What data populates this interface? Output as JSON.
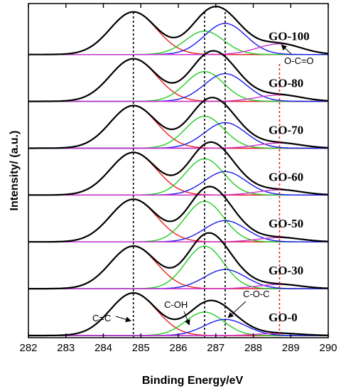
{
  "chart_data": {
    "type": "line",
    "xlabel": "Binding Energy/eV",
    "ylabel": "Intensity/ (a.u.)",
    "xlim": [
      282,
      290
    ],
    "x_ticks": [
      "282",
      "283",
      "284",
      "285",
      "286",
      "287",
      "288",
      "289",
      "290"
    ],
    "y_ticks_shown": false,
    "grid": false,
    "reference_lines": [
      {
        "x": 284.8,
        "color": "#000000",
        "style": "dotted"
      },
      {
        "x": 286.7,
        "color": "#000000",
        "style": "dotted"
      },
      {
        "x": 287.25,
        "color": "#000000",
        "style": "dotted"
      },
      {
        "x": 288.7,
        "color": "#e82020",
        "style": "dotted"
      }
    ],
    "component_colors": {
      "envelope": "#000000",
      "c_eq_c": "#e82020",
      "c_oh": "#22cc22",
      "c_o_c": "#1a1aee",
      "o_c_eq_o": "#cc33cc"
    },
    "annotations": {
      "c_eq_c": "C=C",
      "c_oh": "C-OH",
      "c_o_c": "C-O-C",
      "o_c_eq_o": "O-C=O"
    },
    "stack_gap": 1.1,
    "series": [
      {
        "name": "GO-100",
        "peaks": [
          {
            "component": "c_eq_c",
            "center": 284.8,
            "height": 1.0,
            "fwhm": 1.45
          },
          {
            "component": "c_oh",
            "center": 286.7,
            "height": 0.55,
            "fwhm": 1.2
          },
          {
            "component": "c_o_c",
            "center": 287.25,
            "height": 0.73,
            "fwhm": 1.3
          },
          {
            "component": "o_c_eq_o",
            "center": 288.7,
            "height": 0.25,
            "fwhm": 1.4
          }
        ]
      },
      {
        "name": "GO-80",
        "peaks": [
          {
            "component": "c_eq_c",
            "center": 284.8,
            "height": 1.0,
            "fwhm": 1.45
          },
          {
            "component": "c_oh",
            "center": 286.7,
            "height": 0.7,
            "fwhm": 1.2
          },
          {
            "component": "c_o_c",
            "center": 287.25,
            "height": 0.65,
            "fwhm": 1.3
          },
          {
            "component": "o_c_eq_o",
            "center": 288.7,
            "height": 0.15,
            "fwhm": 1.4
          }
        ]
      },
      {
        "name": "GO-70",
        "peaks": [
          {
            "component": "c_eq_c",
            "center": 284.8,
            "height": 1.0,
            "fwhm": 1.45
          },
          {
            "component": "c_oh",
            "center": 286.7,
            "height": 0.75,
            "fwhm": 1.2
          },
          {
            "component": "c_o_c",
            "center": 287.25,
            "height": 0.6,
            "fwhm": 1.3
          },
          {
            "component": "o_c_eq_o",
            "center": 288.7,
            "height": 0.12,
            "fwhm": 1.4
          }
        ]
      },
      {
        "name": "GO-60",
        "peaks": [
          {
            "component": "c_eq_c",
            "center": 284.8,
            "height": 1.0,
            "fwhm": 1.45
          },
          {
            "component": "c_oh",
            "center": 286.7,
            "height": 0.85,
            "fwhm": 1.2
          },
          {
            "component": "c_o_c",
            "center": 287.25,
            "height": 0.55,
            "fwhm": 1.3
          },
          {
            "component": "o_c_eq_o",
            "center": 288.7,
            "height": 0.12,
            "fwhm": 1.4
          }
        ]
      },
      {
        "name": "GO-50",
        "peaks": [
          {
            "component": "c_eq_c",
            "center": 284.8,
            "height": 1.0,
            "fwhm": 1.45
          },
          {
            "component": "c_oh",
            "center": 286.7,
            "height": 0.95,
            "fwhm": 1.2
          },
          {
            "component": "c_o_c",
            "center": 287.25,
            "height": 0.5,
            "fwhm": 1.3
          },
          {
            "component": "o_c_eq_o",
            "center": 288.7,
            "height": 0.1,
            "fwhm": 1.4
          }
        ]
      },
      {
        "name": "GO-30",
        "peaks": [
          {
            "component": "c_eq_c",
            "center": 284.8,
            "height": 1.0,
            "fwhm": 1.45
          },
          {
            "component": "c_oh",
            "center": 286.7,
            "height": 1.0,
            "fwhm": 1.2
          },
          {
            "component": "c_o_c",
            "center": 287.25,
            "height": 0.45,
            "fwhm": 1.3
          },
          {
            "component": "o_c_eq_o",
            "center": 288.7,
            "height": 0.1,
            "fwhm": 1.4
          }
        ]
      },
      {
        "name": "GO-0",
        "peaks": [
          {
            "component": "c_eq_c",
            "center": 284.8,
            "height": 1.0,
            "fwhm": 1.45
          },
          {
            "component": "c_oh",
            "center": 286.7,
            "height": 0.55,
            "fwhm": 1.2
          },
          {
            "component": "c_o_c",
            "center": 287.25,
            "height": 0.38,
            "fwhm": 1.3
          },
          {
            "component": "o_c_eq_o",
            "center": 288.7,
            "height": 0.05,
            "fwhm": 1.4
          }
        ]
      }
    ]
  }
}
